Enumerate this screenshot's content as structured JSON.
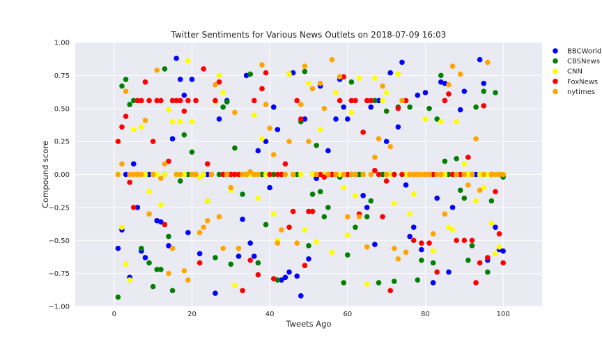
{
  "chart_data": {
    "type": "scatter",
    "title": "Twitter Sentiments for Various News Outlets on 2018-07-09 16:03",
    "xlabel": "Tweets Ago",
    "ylabel": "Compound score",
    "xlim": [
      -10,
      110
    ],
    "ylim": [
      -1.0,
      1.0
    ],
    "xticks": [
      0,
      20,
      40,
      60,
      80,
      100
    ],
    "yticks": [
      -1.0,
      -0.75,
      -0.5,
      -0.25,
      0.0,
      0.25,
      0.5,
      0.75,
      1.0
    ],
    "ytick_labels": [
      "−1.00",
      "−0.75",
      "−0.50",
      "−0.25",
      "0.00",
      "0.25",
      "0.50",
      "0.75",
      "1.00"
    ],
    "grid": true,
    "legend_position": "outside-top-right",
    "series": [
      {
        "name": "BBCWorld",
        "color": "#0000ff",
        "x": [
          1,
          2,
          3,
          4,
          5,
          6,
          7,
          8,
          9,
          10,
          11,
          12,
          13,
          14,
          15,
          16,
          17,
          18,
          19,
          20,
          21,
          22,
          23,
          24,
          25,
          26,
          27,
          28,
          29,
          30,
          31,
          32,
          33,
          34,
          35,
          36,
          37,
          38,
          39,
          40,
          41,
          42,
          43,
          44,
          45,
          46,
          47,
          48,
          49,
          50,
          51,
          52,
          53,
          54,
          55,
          56,
          57,
          58,
          59,
          60,
          61,
          62,
          63,
          64,
          65,
          66,
          67,
          68,
          69,
          70,
          71,
          72,
          73,
          74,
          75,
          76,
          77,
          78,
          79,
          80,
          81,
          82,
          83,
          84,
          85,
          86,
          87,
          88,
          89,
          90,
          91,
          92,
          93,
          94,
          95,
          96,
          97,
          98,
          99,
          100
        ],
        "y": [
          -0.56,
          -0.42,
          0.0,
          -0.78,
          0.08,
          -0.25,
          -0.58,
          -0.63,
          0.0,
          0.0,
          -0.35,
          -0.36,
          0.0,
          -0.54,
          0.27,
          0.88,
          0.72,
          0.6,
          -0.44,
          0.72,
          0.0,
          -0.6,
          0.0,
          0.0,
          0.0,
          -0.9,
          0.42,
          0.0,
          0.56,
          0.0,
          0.0,
          -0.62,
          -0.34,
          0.75,
          -0.52,
          -0.62,
          0.18,
          0.0,
          0.25,
          -0.1,
          0.51,
          0.34,
          -0.8,
          -0.78,
          -0.74,
          0.77,
          -0.77,
          -0.92,
          0.42,
          -0.64,
          0.0,
          -0.03,
          0.67,
          0.0,
          0.18,
          0.0,
          0.42,
          0.72,
          0.51,
          0.42,
          0.0,
          0.0,
          0.0,
          -0.16,
          -0.25,
          0.51,
          -0.53,
          0.56,
          0.0,
          0.25,
          0.77,
          0.0,
          0.36,
          0.85,
          -0.08,
          -0.47,
          -0.4,
          0.6,
          -0.57,
          0.62,
          0.0,
          -0.82,
          -0.18,
          0.7,
          0.69,
          -0.74,
          -0.25,
          0.0,
          0.49,
          0.63,
          0.0,
          0.0,
          0.0,
          0.87,
          0.69,
          -0.65,
          0.0,
          -0.4,
          -0.57,
          -0.58
        ]
      },
      {
        "name": "CBSNews",
        "color": "#008000",
        "x": [
          1,
          2,
          3,
          4,
          5,
          6,
          7,
          8,
          9,
          10,
          11,
          12,
          13,
          14,
          15,
          16,
          17,
          18,
          19,
          20,
          21,
          22,
          23,
          24,
          25,
          26,
          27,
          28,
          29,
          30,
          31,
          32,
          33,
          34,
          35,
          36,
          37,
          38,
          39,
          40,
          41,
          42,
          43,
          44,
          45,
          46,
          47,
          48,
          49,
          50,
          51,
          52,
          53,
          54,
          55,
          56,
          57,
          58,
          59,
          60,
          61,
          62,
          63,
          64,
          65,
          66,
          67,
          68,
          69,
          70,
          71,
          72,
          73,
          74,
          75,
          76,
          77,
          78,
          79,
          80,
          81,
          82,
          83,
          84,
          85,
          86,
          87,
          88,
          89,
          90,
          91,
          92,
          93,
          94,
          95,
          96,
          97,
          98,
          99,
          100
        ],
        "y": [
          -0.93,
          0.67,
          0.72,
          0.53,
          0.56,
          0.0,
          -0.56,
          0.0,
          -0.67,
          -0.85,
          -0.72,
          -0.72,
          0.8,
          -0.47,
          -0.88,
          0.0,
          -0.05,
          0.3,
          0.0,
          0.17,
          0.0,
          -0.02,
          0.0,
          -0.2,
          0.0,
          -0.63,
          0.0,
          0.51,
          0.55,
          -0.68,
          0.2,
          0.0,
          -0.15,
          0.0,
          0.76,
          0.0,
          -0.67,
          0.0,
          -0.38,
          0.0,
          0.0,
          -0.8,
          0.0,
          0.0,
          0.76,
          0.0,
          0.0,
          0.4,
          0.78,
          -0.54,
          -0.15,
          0.22,
          -0.13,
          -0.32,
          -0.25,
          0.0,
          0.0,
          -0.02,
          -0.82,
          -0.61,
          0.7,
          -0.4,
          0.0,
          0.0,
          -0.32,
          -0.2,
          0.56,
          -0.82,
          0.0,
          0.48,
          0.0,
          -0.81,
          0.51,
          0.0,
          0.0,
          0.51,
          0.0,
          -0.8,
          -0.65,
          0.0,
          0.5,
          -0.67,
          0.42,
          0.75,
          0.1,
          0.0,
          0.0,
          0.12,
          -0.12,
          -0.18,
          -0.65,
          -0.54,
          0.51,
          0.0,
          0.63,
          -0.74,
          -0.2,
          0.62,
          0.0,
          -0.02
        ]
      },
      {
        "name": "CNN",
        "color": "#ffff00",
        "x": [
          1,
          2,
          3,
          4,
          5,
          6,
          7,
          8,
          9,
          10,
          11,
          12,
          13,
          14,
          15,
          16,
          17,
          18,
          19,
          20,
          21,
          22,
          23,
          24,
          25,
          26,
          27,
          28,
          29,
          30,
          31,
          32,
          33,
          34,
          35,
          36,
          37,
          38,
          39,
          40,
          41,
          42,
          43,
          44,
          45,
          46,
          47,
          48,
          49,
          50,
          51,
          52,
          53,
          54,
          55,
          56,
          57,
          58,
          59,
          60,
          61,
          62,
          63,
          64,
          65,
          66,
          67,
          68,
          69,
          70,
          71,
          72,
          73,
          74,
          75,
          76,
          77,
          78,
          79,
          80,
          81,
          82,
          83,
          84,
          85,
          86,
          87,
          88,
          89,
          90,
          91,
          92,
          93,
          94,
          95,
          96,
          97,
          98,
          99,
          100
        ],
        "y": [
          0.0,
          -0.4,
          -0.68,
          -0.8,
          0.34,
          0.0,
          0.36,
          0.0,
          -0.13,
          0.0,
          0.0,
          -0.23,
          0.0,
          0.49,
          0.4,
          0.0,
          0.4,
          0.0,
          0.86,
          0.4,
          0.0,
          -0.02,
          0.0,
          -0.2,
          0.0,
          0.55,
          0.75,
          0.62,
          0.0,
          -0.12,
          -0.84,
          0.0,
          0.0,
          0.0,
          0.0,
          0.45,
          -0.18,
          0.27,
          0.0,
          0.0,
          -0.3,
          -0.5,
          0.0,
          0.0,
          0.76,
          0.0,
          0.56,
          0.0,
          -0.42,
          0.69,
          0.0,
          -0.51,
          0.34,
          0.0,
          0.0,
          -0.59,
          0.62,
          0.0,
          -0.1,
          -0.46,
          0.47,
          -0.16,
          0.73,
          0.0,
          -0.83,
          0.0,
          0.73,
          0.0,
          0.56,
          0.62,
          0.0,
          -0.22,
          0.76,
          0.0,
          0.0,
          -0.3,
          -0.15,
          0.0,
          0.0,
          0.42,
          0.0,
          -0.58,
          0.0,
          0.4,
          0.0,
          -0.4,
          -0.42,
          0.4,
          0.0,
          0.08,
          0.0,
          0.0,
          -0.2,
          0.0,
          -0.1,
          0.0,
          -0.37,
          -0.6,
          -0.55,
          0.0
        ]
      },
      {
        "name": "FoxNews",
        "color": "#ff0000",
        "x": [
          1,
          2,
          3,
          4,
          5,
          6,
          7,
          8,
          9,
          10,
          11,
          12,
          13,
          14,
          15,
          16,
          17,
          18,
          19,
          20,
          21,
          22,
          23,
          24,
          25,
          26,
          27,
          28,
          29,
          30,
          31,
          32,
          33,
          34,
          35,
          36,
          37,
          38,
          39,
          40,
          41,
          42,
          43,
          44,
          45,
          46,
          47,
          48,
          49,
          50,
          51,
          52,
          53,
          54,
          55,
          56,
          57,
          58,
          59,
          60,
          61,
          62,
          63,
          64,
          65,
          66,
          67,
          68,
          69,
          70,
          71,
          72,
          73,
          74,
          75,
          76,
          77,
          78,
          79,
          80,
          81,
          82,
          83,
          84,
          85,
          86,
          87,
          88,
          89,
          90,
          91,
          92,
          93,
          94,
          95,
          96,
          97,
          98,
          99,
          100
        ],
        "y": [
          0.25,
          0.36,
          0.44,
          -0.06,
          -0.25,
          0.56,
          0.56,
          0.7,
          0.56,
          0.25,
          0.56,
          0.56,
          -0.38,
          0.1,
          0.56,
          0.56,
          0.56,
          0.48,
          0.56,
          0.0,
          0.56,
          -0.67,
          0.8,
          0.08,
          0.0,
          0.56,
          0.7,
          0.0,
          0.0,
          0.0,
          0.0,
          0.0,
          -0.88,
          0.0,
          -0.65,
          0.56,
          -0.76,
          0.65,
          0.77,
          0.0,
          -0.79,
          0.0,
          0.0,
          0.08,
          -0.4,
          -0.28,
          0.56,
          0.42,
          -0.69,
          -0.28,
          -0.28,
          0.0,
          0.0,
          -0.02,
          0.0,
          0.0,
          0.0,
          0.56,
          0.74,
          0.0,
          0.56,
          0.56,
          -0.3,
          0.32,
          0.56,
          0.56,
          0.03,
          0.0,
          -0.32,
          -0.05,
          -0.88,
          0.0,
          0.5,
          0.0,
          0.56,
          0.0,
          -0.5,
          0.0,
          -0.52,
          0.0,
          -0.52,
          0.0,
          -0.74,
          0.0,
          0.56,
          0.61,
          0.0,
          -0.5,
          0.0,
          -0.5,
          0.13,
          -0.5,
          -0.82,
          -0.67,
          0.52,
          -0.63,
          0.0,
          -0.13,
          -0.45,
          -0.67
        ]
      },
      {
        "name": "nytimes",
        "color": "#ffa500",
        "x": [
          1,
          2,
          3,
          4,
          5,
          6,
          7,
          8,
          9,
          10,
          11,
          12,
          13,
          14,
          15,
          16,
          17,
          18,
          19,
          20,
          21,
          22,
          23,
          24,
          25,
          26,
          27,
          28,
          29,
          30,
          31,
          32,
          33,
          34,
          35,
          36,
          37,
          38,
          39,
          40,
          41,
          42,
          43,
          44,
          45,
          46,
          47,
          48,
          49,
          50,
          51,
          52,
          53,
          54,
          55,
          56,
          57,
          58,
          59,
          60,
          61,
          62,
          63,
          64,
          65,
          66,
          67,
          68,
          69,
          70,
          71,
          72,
          73,
          74,
          75,
          76,
          77,
          78,
          79,
          80,
          81,
          82,
          83,
          84,
          85,
          86,
          87,
          88,
          89,
          90,
          91,
          92,
          93,
          94,
          95,
          96,
          97,
          98,
          99,
          100
        ],
        "y": [
          0.0,
          0.08,
          0.63,
          0.0,
          0.0,
          0.0,
          0.0,
          0.41,
          -0.3,
          0.0,
          0.79,
          -0.03,
          0.08,
          -0.75,
          -0.56,
          0.0,
          0.0,
          -0.73,
          -0.8,
          0.0,
          0.0,
          -0.44,
          -0.4,
          -0.35,
          0.0,
          0.68,
          -0.32,
          -0.56,
          0.0,
          -0.1,
          0.47,
          -0.56,
          0.0,
          0.0,
          0.02,
          0.0,
          0.0,
          0.83,
          0.53,
          0.35,
          0.15,
          -0.52,
          -0.42,
          0.0,
          0.25,
          0.0,
          -0.52,
          0.53,
          0.82,
          0.25,
          0.65,
          0.0,
          0.69,
          0.5,
          0.0,
          0.87,
          0.0,
          0.74,
          0.0,
          -0.32,
          0.0,
          0.0,
          -0.32,
          0.0,
          -0.55,
          0.0,
          0.13,
          0.27,
          0.67,
          0.0,
          0.21,
          -0.56,
          -0.64,
          0.56,
          -0.59,
          0.0,
          0.0,
          0.0,
          0.0,
          0.0,
          0.0,
          -0.45,
          0.0,
          0.0,
          -0.3,
          0.68,
          0.82,
          0.0,
          0.76,
          0.0,
          -0.08,
          0.0,
          0.27,
          -0.12,
          0.0,
          0.85,
          0.0,
          0.0,
          0.0,
          0.0
        ]
      }
    ]
  }
}
